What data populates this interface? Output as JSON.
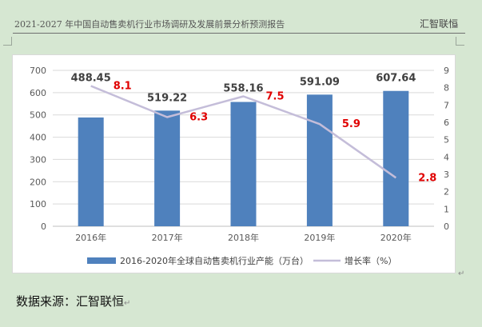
{
  "header": {
    "title": "2021-2027 年中国自动售卖机行业市场调研及发展前景分析预测报告",
    "brand": "汇智联恒"
  },
  "paragraph_mark": "↵",
  "source": "数据来源：汇智联恒",
  "chart_data": {
    "type": "bar",
    "categories": [
      "2016年",
      "2017年",
      "2018年",
      "2019年",
      "2020年"
    ],
    "series": [
      {
        "name": "2016-2020年全球自动售卖机行业产能（万台）",
        "kind": "bar",
        "axis": "left",
        "color": "#4f81bd",
        "values": [
          488.45,
          519.22,
          558.16,
          591.09,
          607.64
        ]
      },
      {
        "name": "增长率（%）",
        "kind": "line",
        "axis": "right",
        "color": "#c4bdd9",
        "values": [
          8.1,
          6.3,
          7.5,
          5.9,
          2.8
        ]
      }
    ],
    "y_left": {
      "min": 0,
      "max": 700,
      "step": 100
    },
    "y_right": {
      "min": 0,
      "max": 9,
      "step": 1
    },
    "bar_label_color": "#404040",
    "rate_label_color": "#e00000",
    "grid": true,
    "legend_position": "bottom"
  }
}
